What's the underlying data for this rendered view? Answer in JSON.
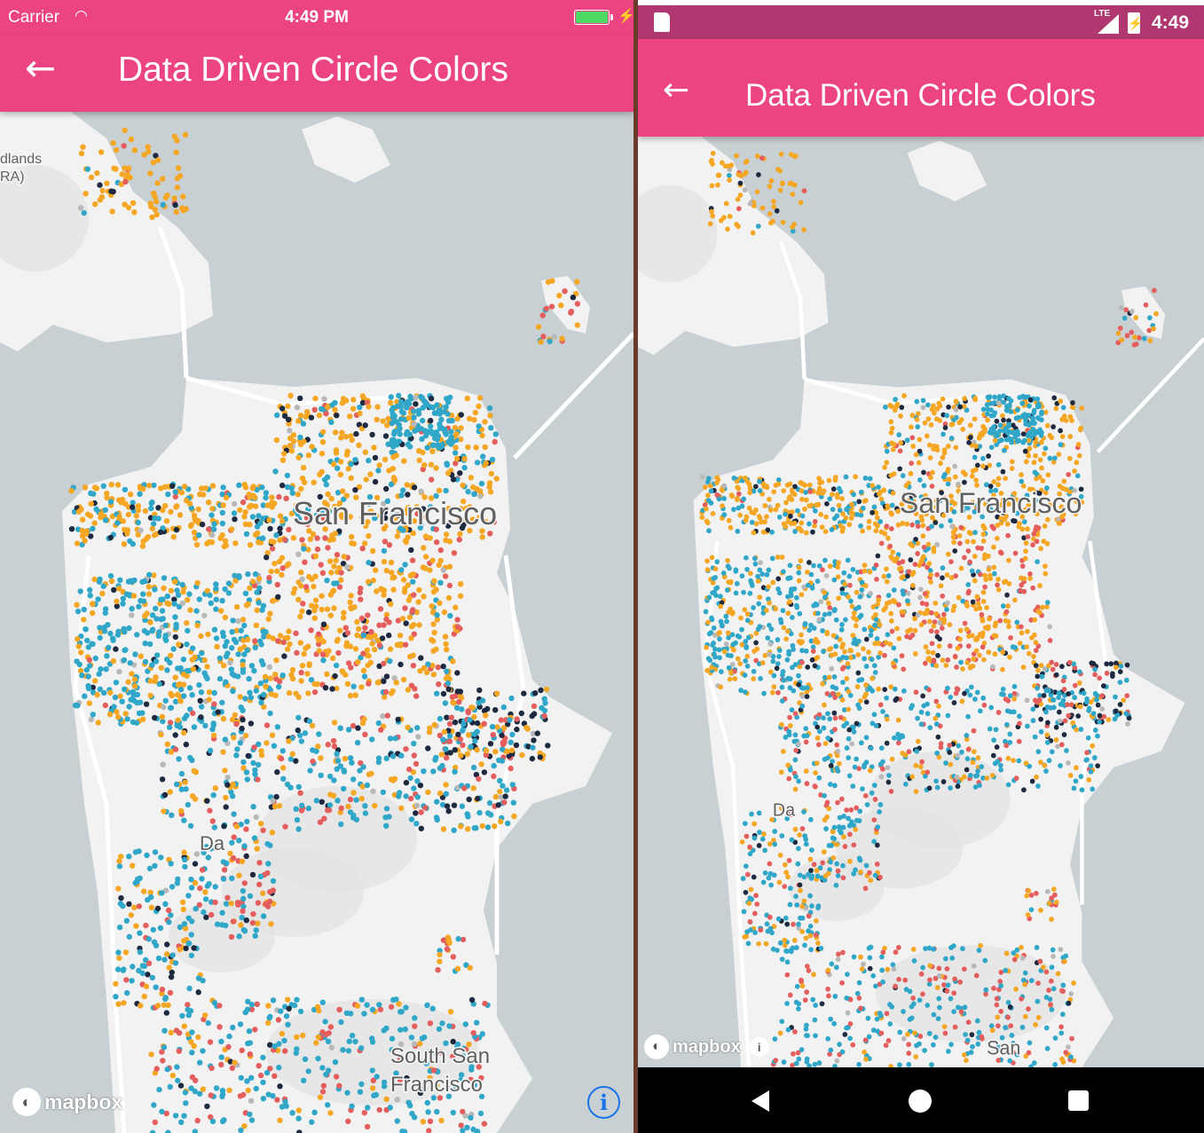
{
  "ios": {
    "status": {
      "carrier": "Carrier",
      "time": "4:49 PM",
      "battery_level": 1.0,
      "charging": true
    },
    "app_bar": {
      "title": "Data Driven Circle Colors",
      "back_icon": "arrow-left-icon"
    },
    "map": {
      "labels": {
        "headlands": "dlands",
        "headlands2": "RA)",
        "city": "San Francisco",
        "daly": "Da",
        "ssf1": "South San",
        "ssf2": "Francisco"
      },
      "attribution": "mapbox",
      "info_icon": "i"
    }
  },
  "android": {
    "status": {
      "network": "LTE",
      "time": "4:49",
      "charging": true
    },
    "app_bar": {
      "title": "Data Driven Circle Colors",
      "back_icon": "arrow-left-icon"
    },
    "map": {
      "labels": {
        "city": "San Francisco",
        "daly": "Da",
        "ssf1": "San"
      },
      "attribution": "mapbox"
    },
    "nav": {
      "back_icon": "triangle-back-icon",
      "home_icon": "circle-home-icon",
      "recent_icon": "square-recents-icon"
    }
  },
  "colors": {
    "appbar": "#ec4483",
    "android_status": "#b03770",
    "water": "#c8d0d3",
    "land": "#f2f2f2",
    "circle_orange": "#f5a623",
    "circle_blue": "#30a7c8",
    "circle_red": "#e55e5e",
    "circle_navy": "#1e2a40",
    "circle_gray": "#b8b8b8"
  }
}
